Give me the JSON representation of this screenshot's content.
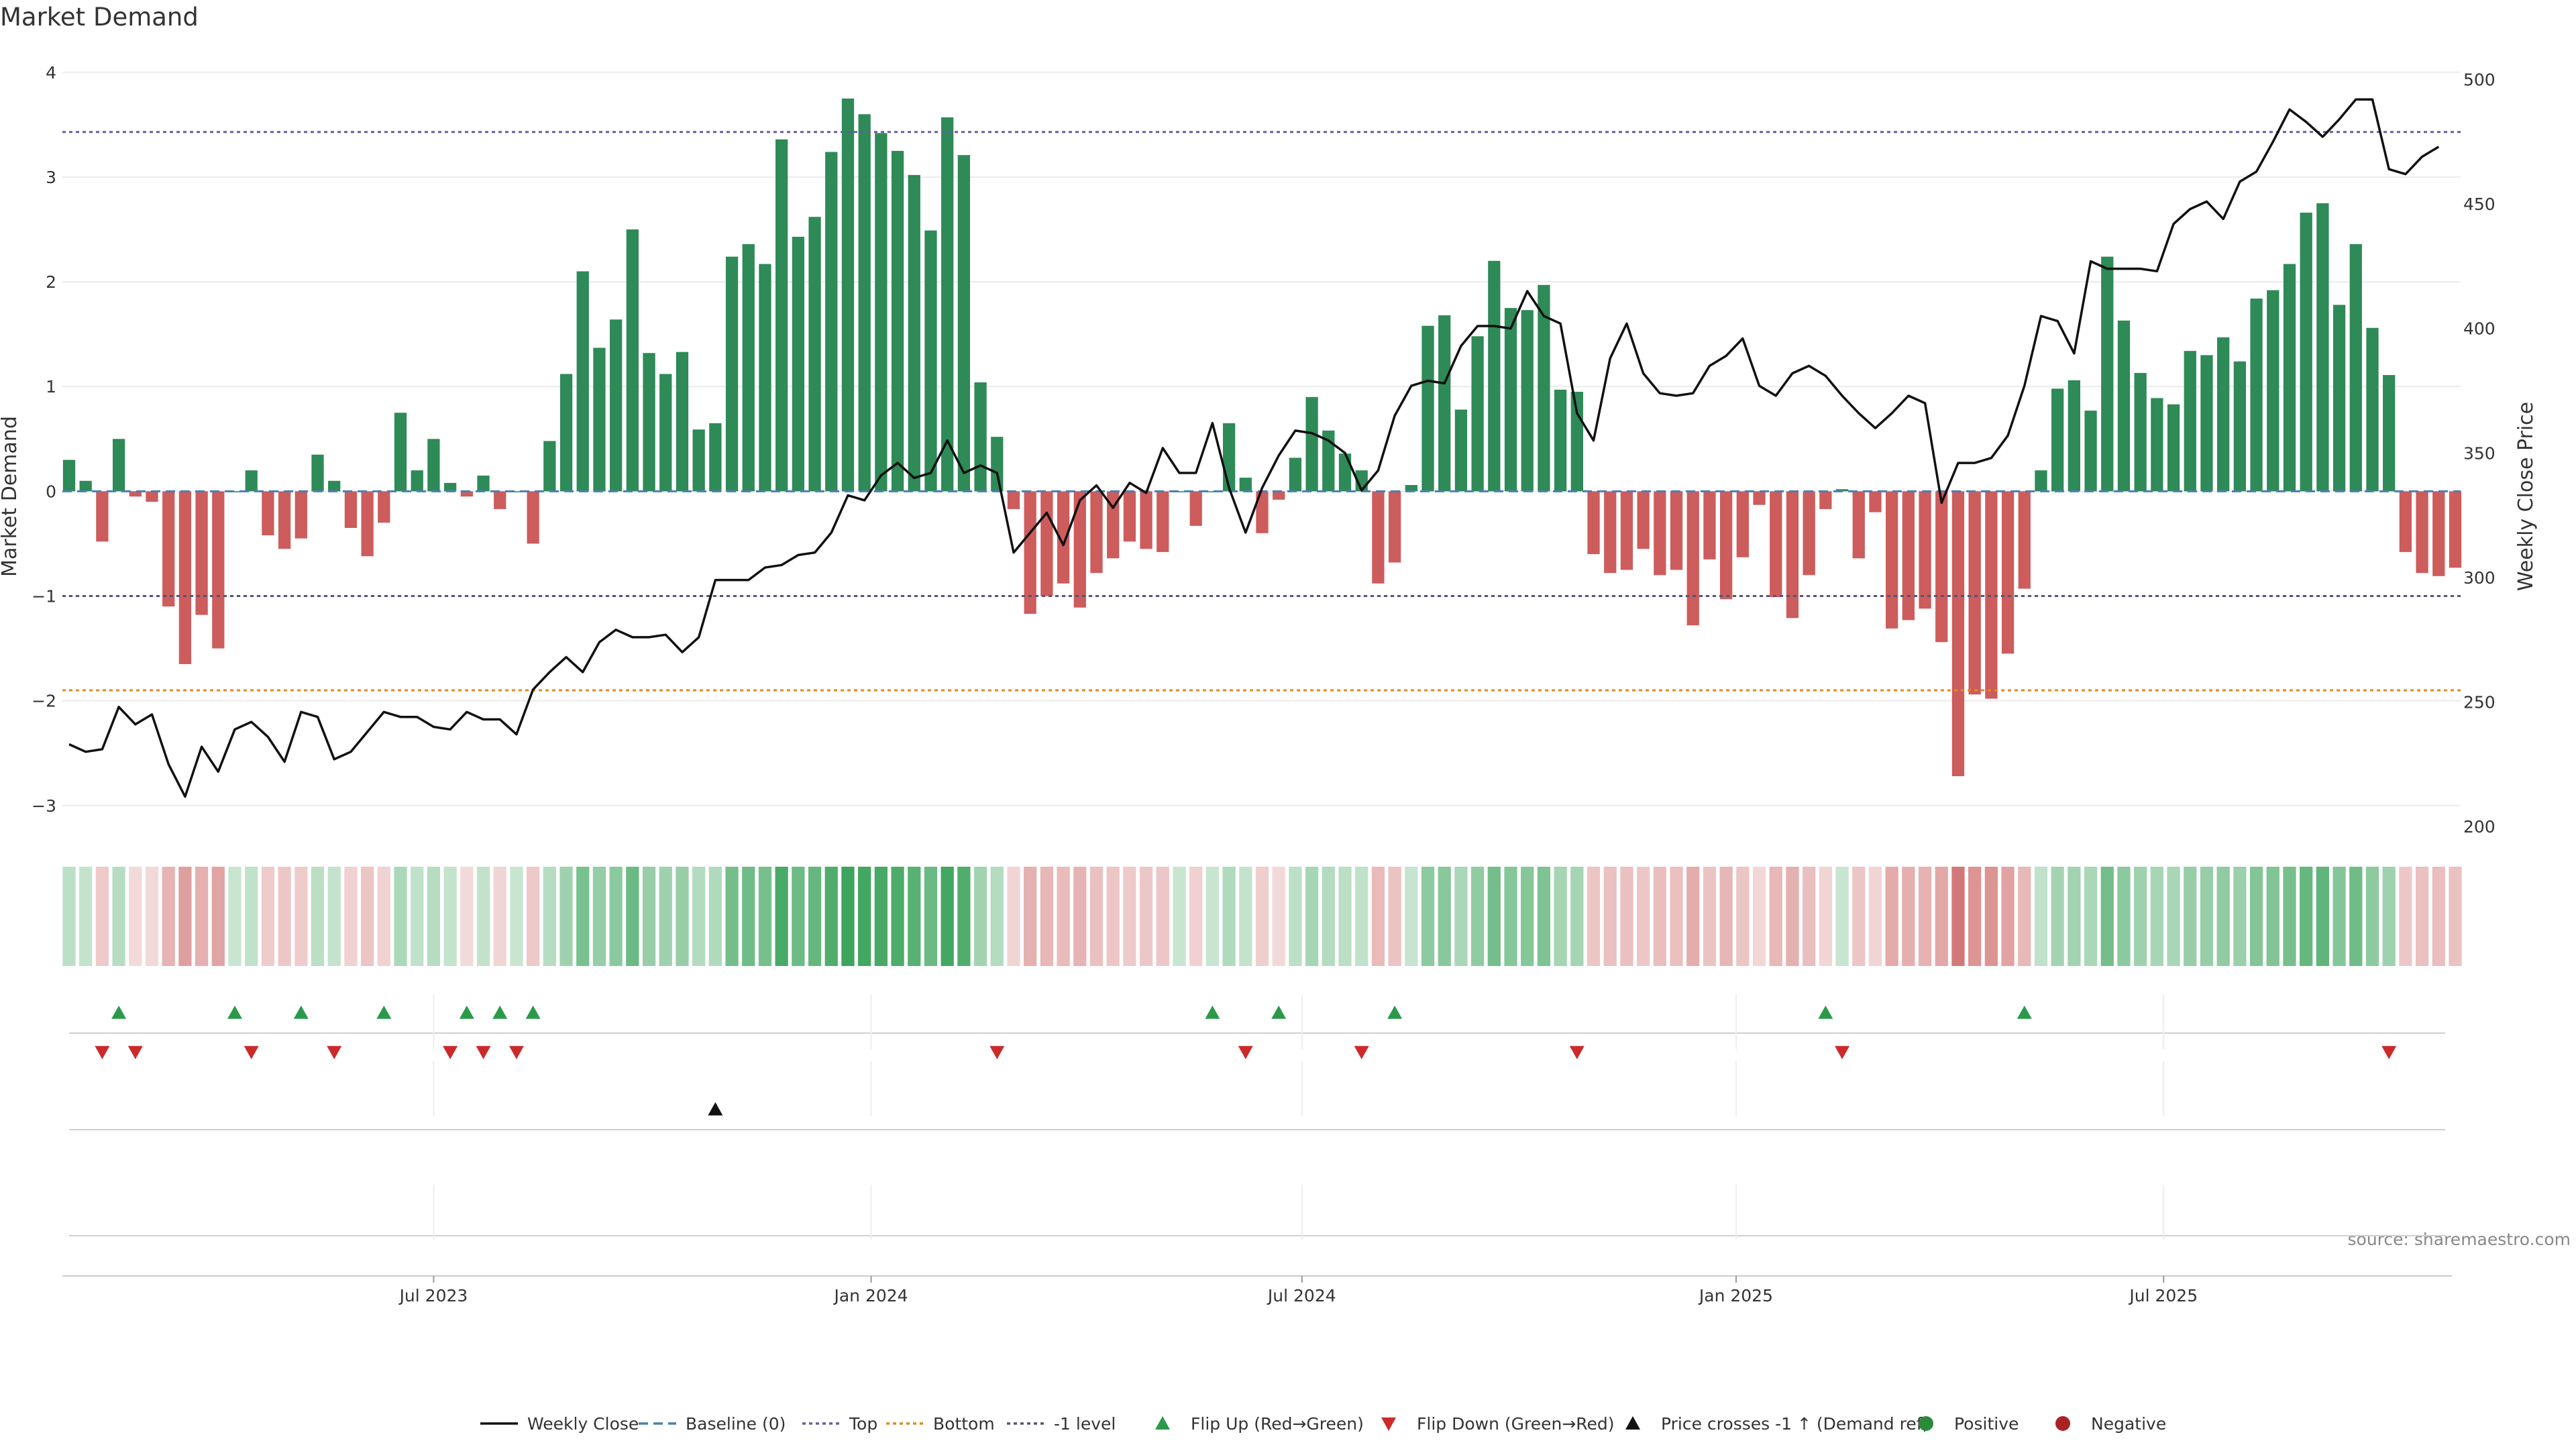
{
  "chart_data": {
    "type": "bar",
    "title": "Market Demand",
    "ylabel_left": "Market Demand",
    "ylabel_right": "Weekly Close Price",
    "source": "source: sharemaestro.com",
    "ylim_left": [
      -3.2,
      4.05
    ],
    "ylim_right": [
      200,
      505
    ],
    "yticks_left": [
      {
        "v": 4,
        "t": "4"
      },
      {
        "v": 3,
        "t": "3"
      },
      {
        "v": 2,
        "t": "2"
      },
      {
        "v": 1,
        "t": "1"
      },
      {
        "v": 0,
        "t": "0"
      },
      {
        "v": -1,
        "t": "−1"
      },
      {
        "v": -2,
        "t": "−2"
      },
      {
        "v": -3,
        "t": "−3"
      }
    ],
    "yticks_right": [
      {
        "v": 500,
        "t": "500"
      },
      {
        "v": 450,
        "t": "450"
      },
      {
        "v": 400,
        "t": "400"
      },
      {
        "v": 350,
        "t": "350"
      },
      {
        "v": 300,
        "t": "300"
      },
      {
        "v": 250,
        "t": "250"
      },
      {
        "v": 200,
        "t": "200"
      }
    ],
    "xticks": [
      {
        "i": 22,
        "t": "Jul 2023"
      },
      {
        "i": 48.4,
        "t": "Jan 2024"
      },
      {
        "i": 74.4,
        "t": "Jul 2024"
      },
      {
        "i": 100.6,
        "t": "Jan 2025"
      },
      {
        "i": 126.4,
        "t": "Jul 2025"
      }
    ],
    "levels": {
      "top": 3.43,
      "bottom": -1.9,
      "minus1": -1.0
    },
    "demand": [
      0.3,
      0.1,
      -0.48,
      0.5,
      -0.05,
      -0.1,
      -1.1,
      -1.65,
      -1.18,
      -1.5,
      0.0,
      0.2,
      -0.42,
      -0.55,
      -0.45,
      0.35,
      0.1,
      -0.35,
      -0.62,
      -0.3,
      0.75,
      0.2,
      0.5,
      0.08,
      -0.05,
      0.15,
      -0.17,
      0.0,
      -0.5,
      0.48,
      1.12,
      2.1,
      1.37,
      1.64,
      2.5,
      1.32,
      1.12,
      1.33,
      0.59,
      0.65,
      2.24,
      2.36,
      2.17,
      3.36,
      2.43,
      2.62,
      3.24,
      3.75,
      3.6,
      3.42,
      3.25,
      3.02,
      2.49,
      3.57,
      3.21,
      1.04,
      0.52,
      -0.17,
      -1.17,
      -1.0,
      -0.88,
      -1.11,
      -0.78,
      -0.64,
      -0.48,
      -0.55,
      -0.58,
      0.0,
      -0.33,
      0.0,
      0.65,
      0.13,
      -0.4,
      -0.08,
      0.32,
      0.9,
      0.58,
      0.36,
      0.2,
      -0.88,
      -0.68,
      0.06,
      1.58,
      1.68,
      0.78,
      1.48,
      2.2,
      1.75,
      1.73,
      1.97,
      0.97,
      0.95,
      -0.6,
      -0.78,
      -0.75,
      -0.55,
      -0.8,
      -0.75,
      -1.28,
      -0.65,
      -1.03,
      -0.63,
      -0.13,
      -1.01,
      -1.21,
      -0.8,
      -0.17,
      0.02,
      -0.64,
      -0.2,
      -1.31,
      -1.23,
      -1.12,
      -1.44,
      -2.72,
      -1.94,
      -1.98,
      -1.55,
      -0.93,
      0.2,
      0.98,
      1.06,
      0.77,
      2.24,
      1.63,
      1.13,
      0.89,
      0.83,
      1.34,
      1.3,
      1.47,
      1.24,
      1.84,
      1.92,
      2.17,
      2.66,
      2.75,
      1.78,
      2.36,
      1.56,
      1.11,
      -0.58,
      -0.78,
      -0.81,
      -0.73
    ],
    "close": [
      233,
      230,
      231,
      248,
      241,
      245,
      225,
      212,
      232,
      222,
      239,
      242,
      236,
      226,
      246,
      244,
      227,
      230,
      238,
      246,
      244,
      244,
      240,
      239,
      246,
      243,
      243,
      237,
      255,
      262,
      268,
      262,
      274,
      279,
      276,
      276,
      277,
      270,
      276,
      299,
      299,
      299,
      304,
      305,
      309,
      310,
      318,
      333,
      331,
      341,
      346,
      340,
      342,
      355,
      342,
      345,
      342,
      310,
      318,
      326,
      313,
      331,
      337,
      328,
      338,
      334,
      352,
      342,
      342,
      362,
      336,
      318,
      336,
      349,
      359,
      358,
      355,
      350,
      335,
      343,
      365,
      377,
      379,
      378,
      393,
      401,
      401,
      400,
      415,
      405,
      402,
      366,
      355,
      388,
      402,
      382,
      374,
      373,
      374,
      385,
      389,
      396,
      377,
      373,
      382,
      385,
      381,
      373,
      366,
      360,
      366,
      373,
      370,
      330,
      346,
      346,
      348,
      357,
      377,
      405,
      403,
      390,
      427,
      424,
      424,
      424,
      423,
      442,
      448,
      451,
      444,
      459,
      463,
      475,
      488,
      483,
      477,
      484,
      492,
      492,
      464,
      462,
      469,
      473
    ],
    "flip_up": [
      3,
      10,
      14,
      19,
      24,
      26,
      28,
      69,
      73,
      80,
      106,
      118
    ],
    "flip_down": [
      2,
      4,
      11,
      16,
      23,
      25,
      27,
      56,
      71,
      78,
      91,
      107,
      140
    ],
    "price_cross": [
      39
    ],
    "legend": [
      {
        "type": "line",
        "label": "Weekly Close",
        "color": "#111111"
      },
      {
        "type": "dash",
        "label": "Baseline (0)",
        "color": "#4a7fb5"
      },
      {
        "type": "dot",
        "label": "Top",
        "color": "#6a5aa8"
      },
      {
        "type": "dot",
        "label": "Bottom",
        "color": "#e08a1e"
      },
      {
        "type": "dot",
        "label": "-1 level",
        "color": "#555577"
      },
      {
        "type": "tri-up",
        "label": "Flip Up (Red→Green)",
        "color": "#2a9a4a"
      },
      {
        "type": "tri-down",
        "label": "Flip Down (Green→Red)",
        "color": "#cc2a2a"
      },
      {
        "type": "tri-up",
        "label": "Price crosses -1 ↑ (Demand ref)",
        "color": "#111111"
      },
      {
        "type": "circle",
        "label": "Positive",
        "color": "#2a8a3a"
      },
      {
        "type": "circle",
        "label": "Negative",
        "color": "#aa2222"
      }
    ],
    "colors": {
      "positive": "#2e8a57",
      "negative": "#cd5c5c",
      "line": "#111111"
    }
  }
}
